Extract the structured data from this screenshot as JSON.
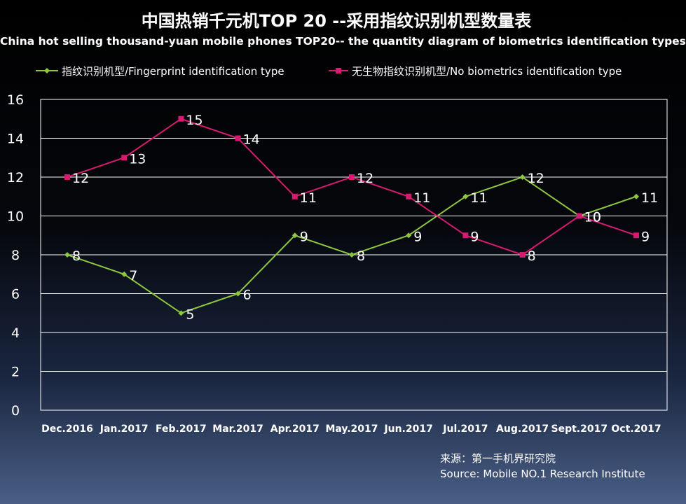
{
  "title": "中国热销千元机TOP 20 --采用指纹识别机型数量表",
  "subtitle": "China hot selling thousand-yuan mobile phones TOP20-- the quantity diagram of biometrics identification types",
  "source_cn": "来源：第一手机界研究院",
  "source_en": "Source: Mobile NO.1 Research Institute",
  "colors": {
    "fingerprint": "#8dc63f",
    "no_biometrics": "#d61a70",
    "grid": "#ffffff",
    "axis_text": "#ffffff"
  },
  "chart_data": {
    "type": "line",
    "categories": [
      "Dec.2016",
      "Jan.2017",
      "Feb.2017",
      "Mar.2017",
      "Apr.2017",
      "May.2017",
      "Jun.2017",
      "Jul.2017",
      "Aug.2017",
      "Sept.2017",
      "Oct.2017"
    ],
    "series": [
      {
        "name": "指纹识别机型/Fingerprint identification type",
        "values": [
          8,
          7,
          5,
          6,
          9,
          8,
          9,
          11,
          12,
          10,
          11
        ]
      },
      {
        "name": "无生物指纹识别机型/No biometrics identification type",
        "values": [
          12,
          13,
          15,
          14,
          11,
          12,
          11,
          9,
          8,
          10,
          9
        ]
      }
    ],
    "ylim": [
      0,
      16
    ],
    "yticks": [
      0,
      2,
      4,
      6,
      8,
      10,
      12,
      14,
      16
    ],
    "grid": true,
    "legend_position": "top",
    "data_labels": true
  }
}
